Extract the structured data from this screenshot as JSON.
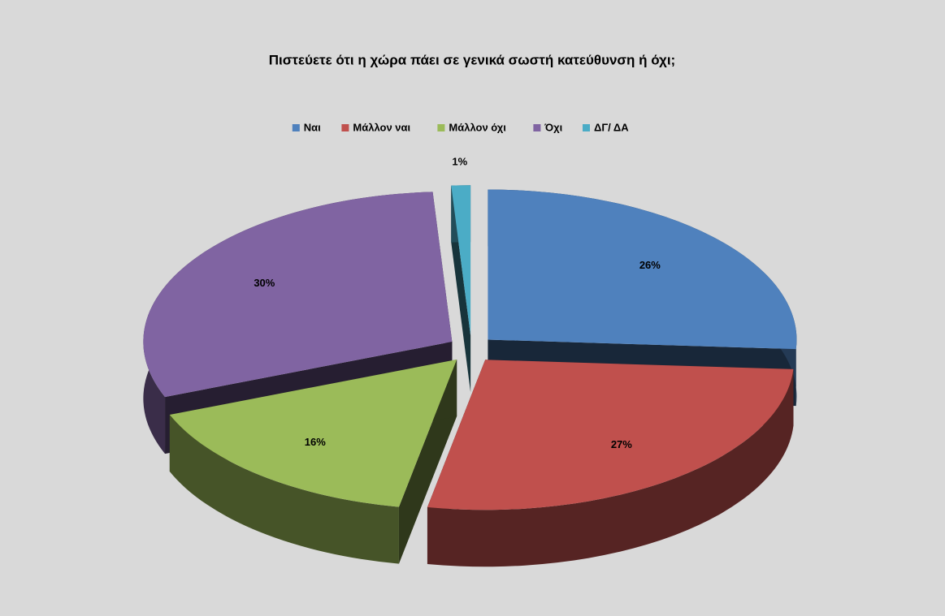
{
  "chart_data": {
    "type": "pie",
    "title": "Πιστεύετε ότι η χώρα πάει σε γενικά σωστή κατεύθυνση ή όχι;",
    "categories": [
      "Ναι",
      "Μάλλον ναι",
      "Μάλλον όχι",
      "Όχι",
      "ΔΓ/ ΔΑ"
    ],
    "values": [
      26,
      27,
      16,
      30,
      1
    ],
    "value_labels": [
      "26%",
      "27%",
      "16%",
      "30%",
      "1%"
    ],
    "colors": [
      "#4f81bd",
      "#c0504d",
      "#9bbb59",
      "#8064a2",
      "#4bacc6"
    ],
    "legend": "top"
  }
}
